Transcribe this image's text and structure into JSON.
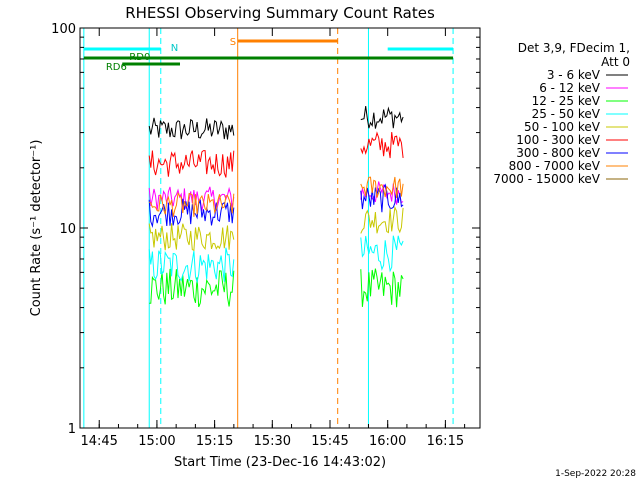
{
  "chart_data": {
    "type": "line",
    "title": "RHESSI Observing Summary Count Rates",
    "xlabel": "Start Time (23-Dec-16 14:43:02)",
    "ylabel": "Count Rate (s⁻¹ detector⁻¹)",
    "yscale": "log",
    "ylim": [
      1,
      100
    ],
    "xlim": [
      "14:40",
      "16:24"
    ],
    "x_ticks": [
      "14:45",
      "15:00",
      "15:15",
      "15:30",
      "15:45",
      "16:00",
      "16:15"
    ],
    "y_ticks": [
      "1",
      "10",
      "100"
    ],
    "legend_header": [
      "Det 3,9, FDecim 1,",
      "Att 0"
    ],
    "legend_position": "right",
    "footer_date": "1-Sep-2022 20:28",
    "series": [
      {
        "name": "3 - 6 keV",
        "color": "#000000",
        "segments": [
          {
            "start": "14:58",
            "end": "15:20",
            "mean": 31,
            "noise": 0.06
          },
          {
            "start": "15:53",
            "end": "16:04",
            "mean": 36,
            "noise": 0.06
          }
        ]
      },
      {
        "name": "6 - 12 keV",
        "color": "#ff00ff",
        "segments": [
          {
            "start": "14:58",
            "end": "15:20",
            "mean": 14,
            "noise": 0.06
          },
          {
            "start": "15:53",
            "end": "16:04",
            "mean": 15,
            "noise": 0.06
          }
        ]
      },
      {
        "name": "12 - 25 keV",
        "color": "#00ff00",
        "segments": [
          {
            "start": "14:58",
            "end": "15:20",
            "mean": 5,
            "noise": 0.1
          },
          {
            "start": "15:53",
            "end": "16:04",
            "mean": 5,
            "noise": 0.1
          }
        ]
      },
      {
        "name": "25 - 50 keV",
        "color": "#00ffff",
        "segments": [
          {
            "start": "14:58",
            "end": "15:20",
            "mean": 6.5,
            "noise": 0.09
          },
          {
            "start": "15:53",
            "end": "16:04",
            "mean": 7.5,
            "noise": 0.09
          }
        ]
      },
      {
        "name": "50 - 100 keV",
        "color": "#c8c800",
        "segments": [
          {
            "start": "14:58",
            "end": "15:20",
            "mean": 9,
            "noise": 0.07
          },
          {
            "start": "15:53",
            "end": "16:04",
            "mean": 11,
            "noise": 0.07
          }
        ]
      },
      {
        "name": "100 - 300 keV",
        "color": "#ff0000",
        "segments": [
          {
            "start": "14:58",
            "end": "15:20",
            "mean": 21,
            "noise": 0.07
          },
          {
            "start": "15:53",
            "end": "16:04",
            "mean": 26,
            "noise": 0.07
          }
        ]
      },
      {
        "name": "300 - 800 keV",
        "color": "#0000ff",
        "segments": [
          {
            "start": "14:58",
            "end": "15:20",
            "mean": 12,
            "noise": 0.07
          },
          {
            "start": "15:53",
            "end": "16:04",
            "mean": 14,
            "noise": 0.07
          }
        ]
      },
      {
        "name": "800 - 7000 keV",
        "color": "#ff8000",
        "segments": [
          {
            "start": "14:58",
            "end": "15:20",
            "mean": 13,
            "noise": 0.06
          },
          {
            "start": "15:53",
            "end": "16:04",
            "mean": 16,
            "noise": 0.06
          }
        ]
      },
      {
        "name": "7000 - 15000 keV",
        "color": "#8b6508",
        "segments": []
      }
    ],
    "vertical_markers": [
      {
        "time": "14:41",
        "color": "#00ffff",
        "dashed": false
      },
      {
        "time": "14:58",
        "color": "#00ffff",
        "dashed": false
      },
      {
        "time": "15:01",
        "color": "#00ffff",
        "dashed": true
      },
      {
        "time": "15:21",
        "color": "#ff8000",
        "dashed": false
      },
      {
        "time": "15:47",
        "color": "#ff8000",
        "dashed": true
      },
      {
        "time": "15:55",
        "color": "#00ffff",
        "dashed": false
      },
      {
        "time": "16:17",
        "color": "#00ffff",
        "dashed": true
      }
    ],
    "flag_bars": [
      {
        "label": "N",
        "color": "#00ffff",
        "segments": [
          {
            "start": "14:41",
            "end": "15:01"
          },
          {
            "start": "16:00",
            "end": "16:17"
          }
        ]
      },
      {
        "label": "S",
        "color": "#ff8000",
        "segments": [
          {
            "start": "15:21",
            "end": "15:47"
          }
        ]
      },
      {
        "label": "RD0",
        "color": "#008000",
        "segments": [
          {
            "start": "14:51",
            "end": "15:06"
          }
        ]
      },
      {
        "label": "RD6",
        "color": "#008000",
        "segments": [
          {
            "start": "14:41",
            "end": "16:17"
          }
        ]
      }
    ]
  }
}
